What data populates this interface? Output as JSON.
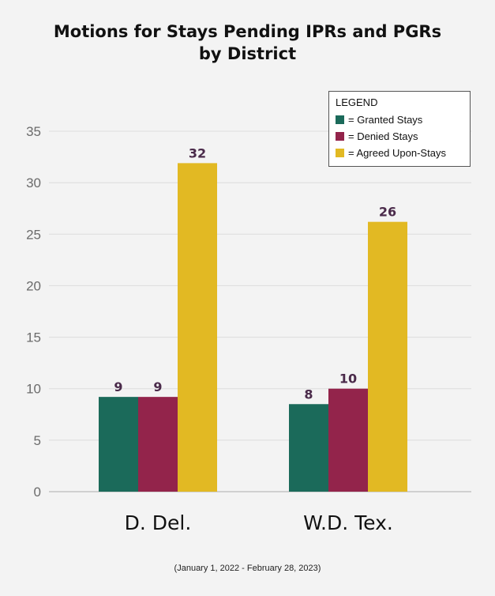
{
  "title_line1": "Motions for Stays Pending IPRs and PGRs",
  "title_line2": "by District",
  "footnote": "(January 1, 2022 - February 28, 2023)",
  "legend": {
    "title": "LEGEND",
    "items": [
      {
        "swatch": "#1b6a5a",
        "label": "= Granted Stays"
      },
      {
        "swatch": "#93244b",
        "label": "= Denied Stays"
      },
      {
        "swatch": "#e2b923",
        "label": "= Agreed Upon-Stays"
      }
    ]
  },
  "chart_data": {
    "type": "bar",
    "categories": [
      "D. Del.",
      "W.D. Tex."
    ],
    "series": [
      {
        "name": "Granted Stays",
        "color": "#1b6a5a",
        "values": [
          9.2,
          8.5
        ],
        "labels": [
          "9",
          "8"
        ]
      },
      {
        "name": "Denied Stays",
        "color": "#93244b",
        "values": [
          9.2,
          10
        ],
        "labels": [
          "9",
          "10"
        ]
      },
      {
        "name": "Agreed Upon-Stays",
        "color": "#e2b923",
        "values": [
          31.9,
          26.2
        ],
        "labels": [
          "32",
          "26"
        ]
      }
    ],
    "ylim": [
      0,
      35
    ],
    "yticks": [
      "0",
      "5",
      "10",
      "15",
      "20",
      "25",
      "30",
      "35"
    ],
    "grid": true,
    "legend_position": "top-right",
    "data_label_color": "#4a2a4a",
    "xlabel": "",
    "ylabel": ""
  }
}
